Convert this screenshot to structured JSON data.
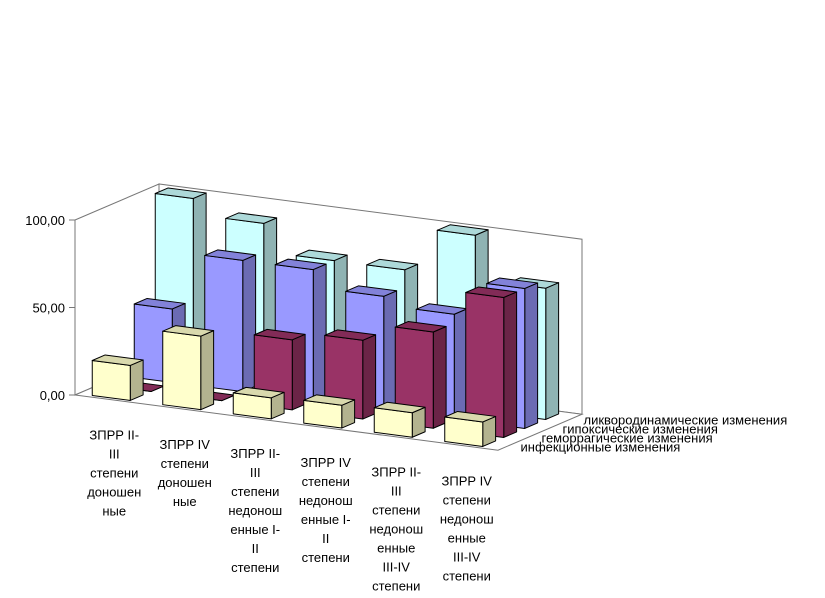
{
  "chart_data": {
    "type": "bar",
    "subtype": "3d-clustered-depth",
    "title": "",
    "xlabel": "",
    "ylabel": "",
    "ylim": [
      0,
      100
    ],
    "y_ticks": [
      "0,00",
      "50,00",
      "100,00"
    ],
    "grid": false,
    "legend": "series labels along depth axis (right side)",
    "categories": [
      [
        "ЗПРР II-",
        "III",
        "степени",
        "доношен",
        "ные"
      ],
      [
        "ЗПРР IV",
        "степени",
        "доношен",
        "ные"
      ],
      [
        "ЗПРР II-",
        "III",
        "степени",
        "недонош",
        "енные I-",
        "II",
        "степени"
      ],
      [
        "ЗПРР IV",
        "степени",
        "недонош",
        "енные I-",
        "II",
        "степени"
      ],
      [
        "ЗПРР II-",
        "III",
        "степени",
        "недонош",
        "енные",
        "III-IV",
        "степени"
      ],
      [
        "ЗПРР IV",
        "степени",
        "недонош",
        "енные",
        "III-IV",
        "степени"
      ]
    ],
    "series": [
      {
        "name": "инфекционные изменения",
        "color": "#ffffcc",
        "values": [
          20,
          42,
          12,
          13,
          14,
          14
        ]
      },
      {
        "name": "геморрагические изменения",
        "color": "#993366",
        "values": [
          0,
          0,
          40,
          45,
          55,
          80
        ]
      },
      {
        "name": "гипоксические изменения",
        "color": "#9999ff",
        "values": [
          42,
          75,
          75,
          65,
          60,
          80
        ]
      },
      {
        "name": "ликвородинамические изменения",
        "color": "#ccffff",
        "values": [
          100,
          91,
          75,
          75,
          100,
          75
        ]
      }
    ]
  }
}
